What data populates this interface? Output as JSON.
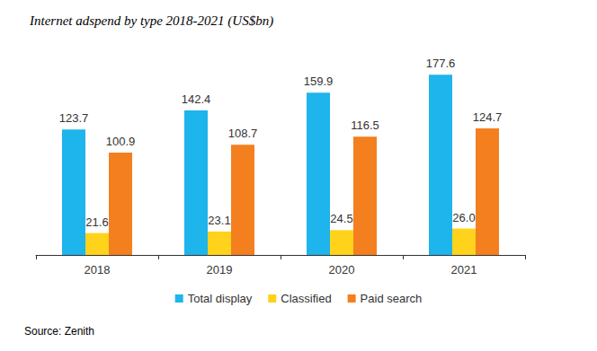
{
  "chart_data": {
    "type": "bar",
    "title": "Internet adspend by type 2018-2021 (US$bn)",
    "source": "Source: Zenith",
    "categories": [
      "2018",
      "2019",
      "2020",
      "2021"
    ],
    "series": [
      {
        "name": "Total display",
        "color": "#1eb4ec",
        "values": [
          123.7,
          142.4,
          159.9,
          177.6
        ]
      },
      {
        "name": "Classified",
        "color": "#ffd21c",
        "values": [
          21.6,
          23.1,
          24.5,
          26.0
        ],
        "value_labels": [
          "21.6",
          "23.1",
          "24.5",
          "26.0"
        ]
      },
      {
        "name": "Paid search",
        "color": "#f47f1f",
        "values": [
          100.9,
          108.7,
          116.5,
          124.7
        ]
      }
    ],
    "ylim": [
      0,
      200
    ],
    "grid": false,
    "legend": "bottom",
    "data_labels": true,
    "tick_labels": "x"
  }
}
